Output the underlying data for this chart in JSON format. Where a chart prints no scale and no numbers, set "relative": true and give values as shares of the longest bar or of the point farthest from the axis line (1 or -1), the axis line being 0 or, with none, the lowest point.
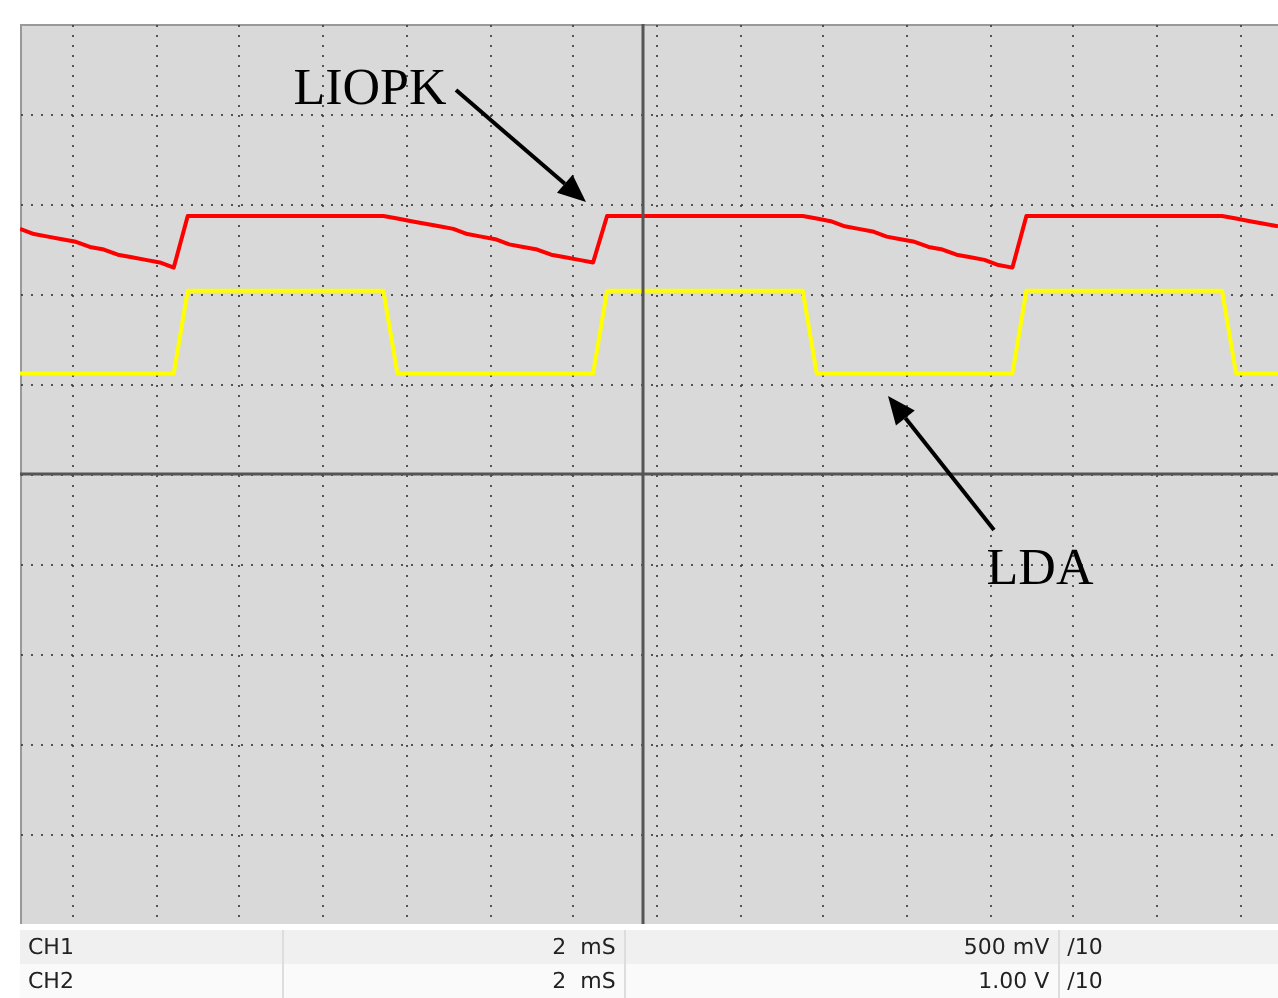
{
  "chart_data": {
    "type": "line",
    "relative": true,
    "grid": true,
    "categories": [
      null,
      null,
      null,
      null,
      null,
      null,
      null,
      null,
      null,
      null,
      null,
      null,
      null,
      null,
      null,
      null,
      null,
      null,
      null,
      null,
      null,
      null,
      null,
      null,
      null,
      null,
      null,
      null,
      null,
      null,
      null,
      null,
      null,
      null,
      null,
      null,
      null,
      null,
      null,
      null,
      null,
      null,
      null,
      null,
      null,
      null,
      null,
      null,
      null,
      null,
      null,
      null,
      null,
      null,
      null,
      null,
      null,
      null,
      null,
      null,
      null,
      null,
      null,
      null,
      null,
      null,
      null,
      null,
      null,
      null,
      null,
      null,
      null,
      null,
      null,
      null,
      null,
      null,
      null,
      null,
      null,
      null,
      null,
      null,
      null,
      null,
      null,
      null,
      null,
      null,
      null
    ],
    "series": [
      {
        "color": "#ff0000",
        "values": [
          0.95,
          0.93,
          0.92,
          0.91,
          0.9,
          0.88,
          0.87,
          0.85,
          0.84,
          0.83,
          0.82,
          0.8,
          1,
          1,
          1,
          1,
          1,
          1,
          1,
          1,
          1,
          1,
          1,
          1,
          1,
          1,
          1,
          0.99,
          0.98,
          0.97,
          0.96,
          0.95,
          0.93,
          0.92,
          0.91,
          0.89,
          0.88,
          0.87,
          0.85,
          0.84,
          0.83,
          0.82,
          1,
          1,
          1,
          1,
          1,
          1,
          1,
          1,
          1,
          1,
          1,
          1,
          1,
          1,
          1,
          0.99,
          0.98,
          0.96,
          0.95,
          0.94,
          0.92,
          0.91,
          0.9,
          0.88,
          0.87,
          0.85,
          0.84,
          0.83,
          0.81,
          0.8,
          1,
          1,
          1,
          1,
          1,
          1,
          1,
          1,
          1,
          1,
          1,
          1,
          1,
          1,
          1,
          0.99,
          0.98,
          0.97,
          0.96
        ]
      },
      {
        "color": "#ffff00",
        "values": [
          0.39,
          0.39,
          0.39,
          0.39,
          0.39,
          0.39,
          0.39,
          0.39,
          0.39,
          0.39,
          0.39,
          0.39,
          0.71,
          0.71,
          0.71,
          0.71,
          0.71,
          0.71,
          0.71,
          0.71,
          0.71,
          0.71,
          0.71,
          0.71,
          0.71,
          0.71,
          0.71,
          0.39,
          0.39,
          0.39,
          0.39,
          0.39,
          0.39,
          0.39,
          0.39,
          0.39,
          0.39,
          0.39,
          0.39,
          0.39,
          0.39,
          0.39,
          0.71,
          0.71,
          0.71,
          0.71,
          0.71,
          0.71,
          0.71,
          0.71,
          0.71,
          0.71,
          0.71,
          0.71,
          0.71,
          0.71,
          0.71,
          0.39,
          0.39,
          0.39,
          0.39,
          0.39,
          0.39,
          0.39,
          0.39,
          0.39,
          0.39,
          0.39,
          0.39,
          0.39,
          0.39,
          0.39,
          0.71,
          0.71,
          0.71,
          0.71,
          0.71,
          0.71,
          0.71,
          0.71,
          0.71,
          0.71,
          0.71,
          0.71,
          0.71,
          0.71,
          0.71,
          0.39,
          0.39,
          0.39,
          0.39
        ]
      }
    ],
    "annotations": [
      "LIOPK",
      "LDA",
      "CH1",
      "2  mS",
      "500 mV",
      "/10",
      "CH2",
      "2  mS",
      "1.00 V",
      "/10"
    ]
  }
}
